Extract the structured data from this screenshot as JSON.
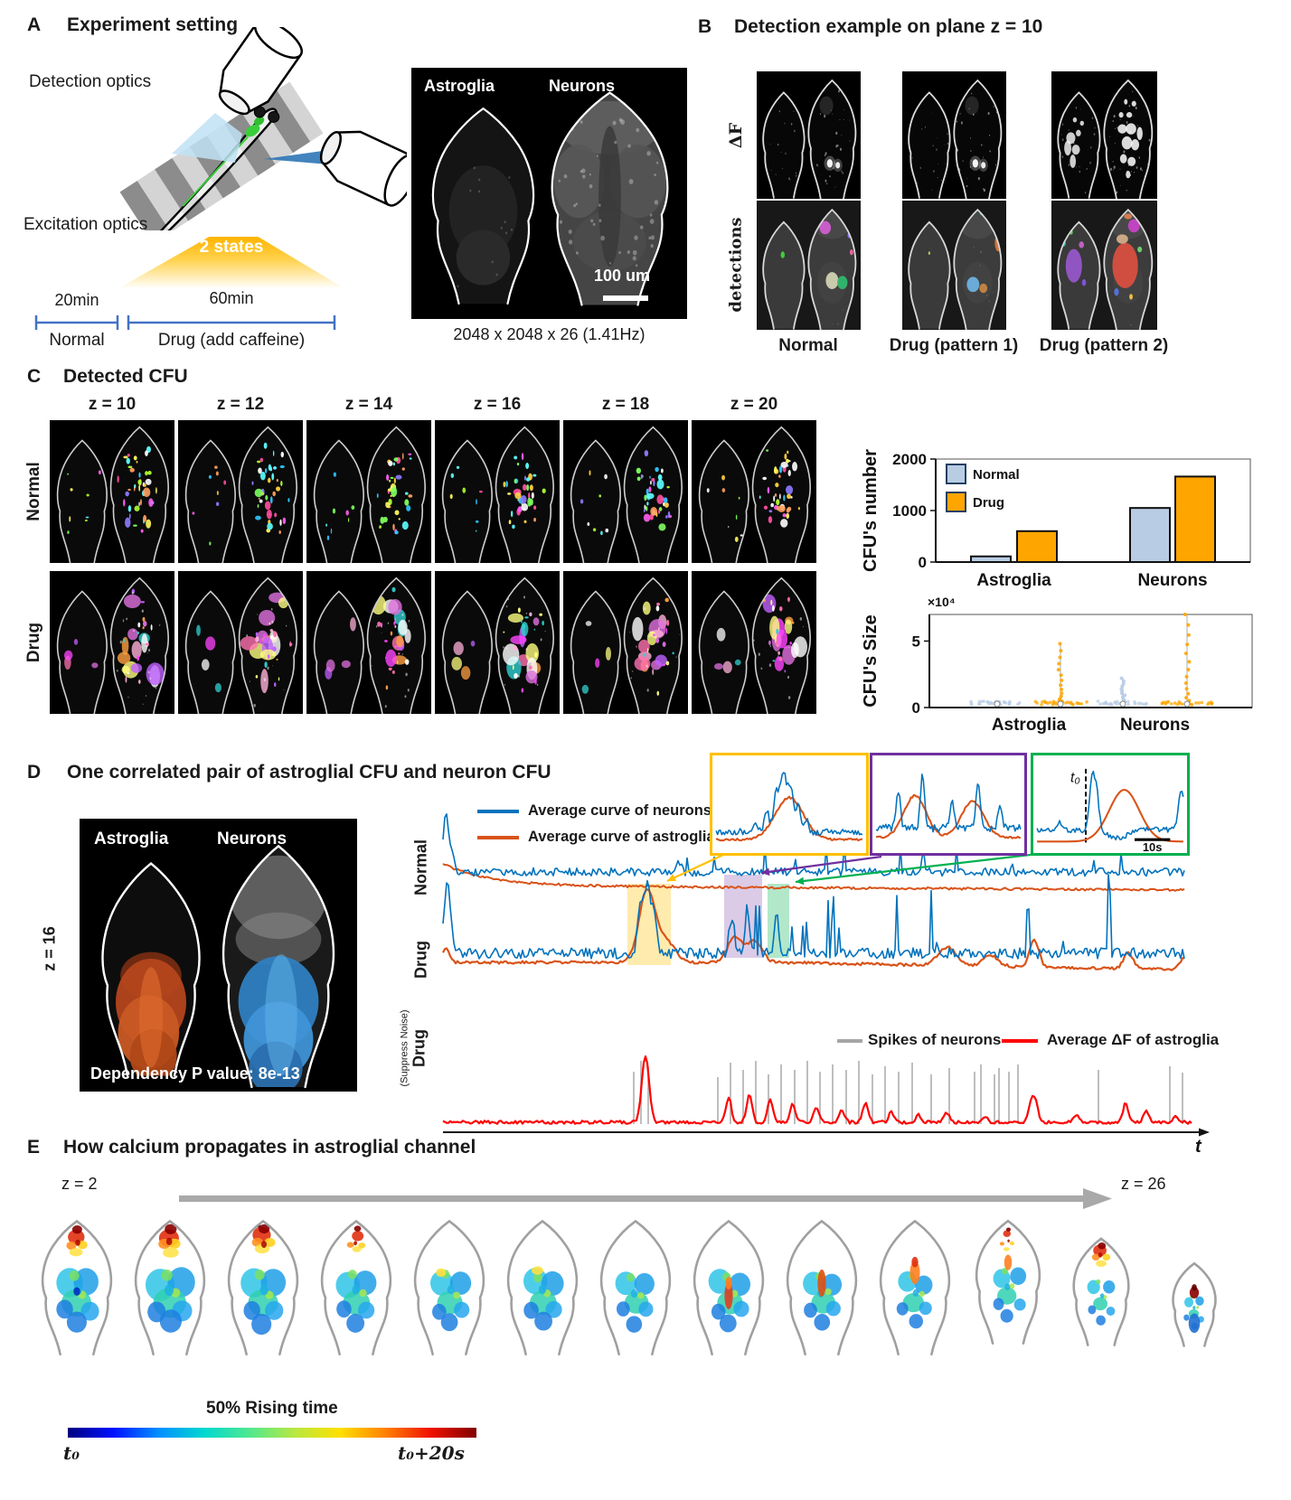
{
  "panelA": {
    "label": "A",
    "title": "Experiment setting",
    "detection_optics_label": "Detection optics",
    "excitation_optics_label": "Excitation optics",
    "states_label": "2 states",
    "normal_duration": "20min",
    "drug_duration": "60min",
    "normal_label": "Normal",
    "drug_label": "Drug (add caffeine)",
    "image_left_label": "Astroglia",
    "image_right_label": "Neurons",
    "scalebar_label": "100 um",
    "caption": "2048 x 2048 x 26 (1.41Hz)"
  },
  "panelB": {
    "label": "B",
    "title": "Detection example on plane z = 10",
    "row_label_df": "ΔF",
    "row_label_detections": "detections",
    "col_labels": [
      "Normal",
      "Drug (pattern 1)",
      "Drug (pattern 2)"
    ]
  },
  "panelC": {
    "label": "C",
    "title": "Detected CFU",
    "z_labels": [
      "z = 10",
      "z = 12",
      "z = 14",
      "z = 16",
      "z = 18",
      "z = 20"
    ],
    "row_label_normal": "Normal",
    "row_label_drug": "Drug"
  },
  "chart_data": [
    {
      "id": "cfu_number",
      "type": "bar",
      "title": "",
      "ylabel": "CFU's number",
      "xlabel": "",
      "categories": [
        "Astroglia",
        "Neurons"
      ],
      "series": [
        {
          "name": "Normal",
          "color": "#b8cce4",
          "values": [
            110,
            1050
          ]
        },
        {
          "name": "Drug",
          "color": "#ffa500",
          "values": [
            600,
            1660
          ]
        }
      ],
      "ylim": [
        0,
        2000
      ],
      "yticks": [
        0,
        1000,
        2000
      ],
      "legend_position": "top-left",
      "grid": false
    },
    {
      "id": "cfu_size",
      "type": "scatter",
      "title": "",
      "ylabel": "CFU's Size",
      "y_multiplier_label": "×10⁴",
      "categories": [
        "Astroglia",
        "Neurons"
      ],
      "series": [
        {
          "category": "Astroglia",
          "name": "Normal",
          "color": "#b8cce4",
          "approx_max": 3000
        },
        {
          "category": "Astroglia",
          "name": "Drug",
          "color": "#ffa500",
          "approx_max": 48000
        },
        {
          "category": "Neurons",
          "name": "Normal",
          "color": "#b8cce4",
          "approx_max": 22000
        },
        {
          "category": "Neurons",
          "name": "Drug",
          "color": "#ffa500",
          "approx_max": 70000
        }
      ],
      "ylim": [
        0,
        70000
      ],
      "yticks": [
        0,
        50000
      ],
      "grid": false
    }
  ],
  "panelD": {
    "label": "D",
    "title": "One correlated pair of astroglial CFU and neuron CFU",
    "z_label": "z = 16",
    "image_left_label": "Astroglia",
    "image_right_label": "Neurons",
    "caption": "Dependency P value: 8e-13",
    "legend": [
      {
        "label": "Average curve of neurons",
        "color": "#0072bd"
      },
      {
        "label": "Average curve of astroglia",
        "color": "#d95319"
      }
    ],
    "row_label_normal": "Normal",
    "row_label_drug": "Drug",
    "row3_label": "Drug",
    "row3_sublabel": "(Suppress Noise)",
    "insets": [
      {
        "name": "yellow",
        "border_color": "#ffc000"
      },
      {
        "name": "purple",
        "border_color": "#7030a0"
      },
      {
        "name": "green",
        "border_color": "#00b050",
        "t0_label": "t₀",
        "scalebar_label": "10s"
      }
    ],
    "bottom_legend": [
      {
        "label": "Spikes of neurons",
        "color": "#a6a6a6"
      },
      {
        "label": "Average ΔF of astroglia",
        "color": "#ff0000"
      }
    ],
    "time_axis_label": "t"
  },
  "panelE": {
    "label": "E",
    "title": "How calcium propagates in astroglial channel",
    "z_start_label": "z = 2",
    "z_end_label": "z = 26",
    "colorbar_title": "50% Rising time",
    "colorbar_left_label": "t₀",
    "colorbar_right_label": "t₀+20s",
    "colorbar_colors": [
      "#00007f",
      "#0010ff",
      "#0090ff",
      "#00d8d0",
      "#50e890",
      "#b8e840",
      "#ffe000",
      "#ff8000",
      "#f01000",
      "#800000"
    ]
  }
}
